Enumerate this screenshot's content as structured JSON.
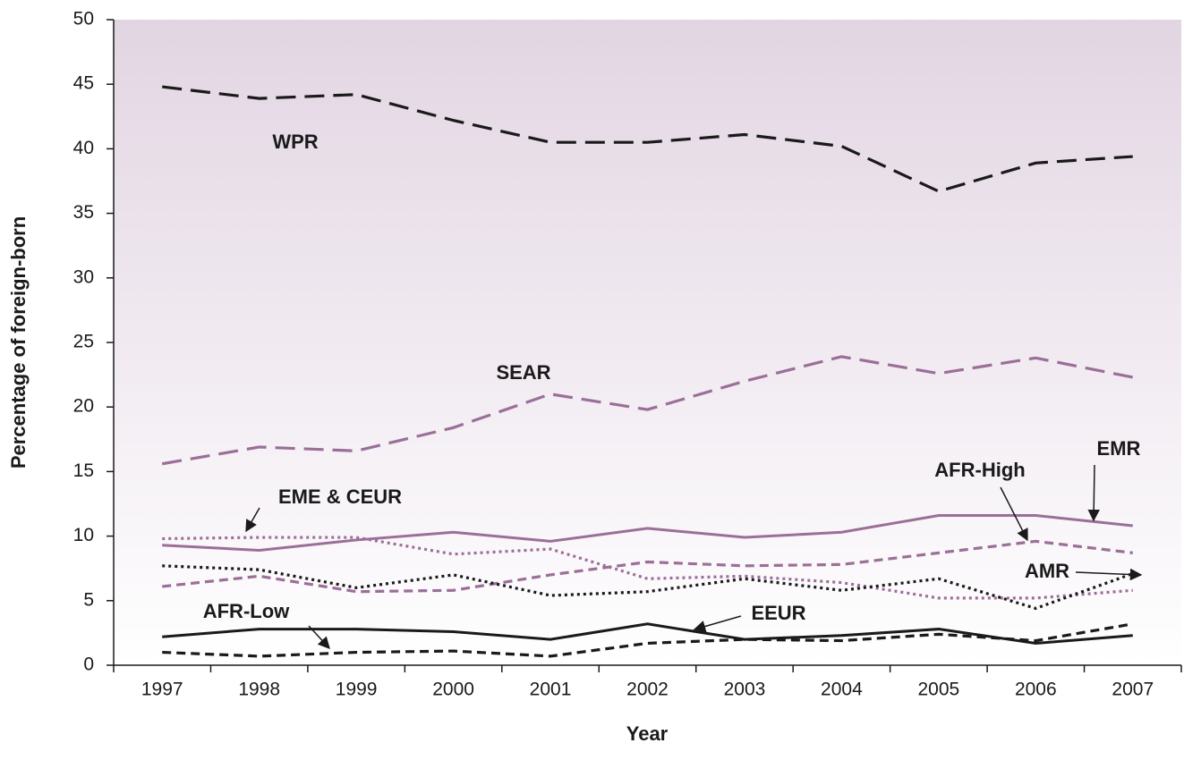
{
  "chart_data": {
    "type": "line",
    "xlabel": "Year",
    "ylabel": "Percentage of foreign-born",
    "categories": [
      "1997",
      "1998",
      "1999",
      "2000",
      "2001",
      "2002",
      "2003",
      "2004",
      "2005",
      "2006",
      "2007"
    ],
    "ylim": [
      0,
      50
    ],
    "yticks": [
      0,
      5,
      10,
      15,
      20,
      25,
      30,
      35,
      40,
      45,
      50
    ],
    "series": [
      {
        "name": "WPR",
        "color": "#1a1a1a",
        "dash": "longdash",
        "values": [
          44.8,
          43.9,
          44.2,
          42.2,
          40.5,
          40.5,
          41.1,
          40.2,
          36.7,
          38.9,
          39.4
        ]
      },
      {
        "name": "SEAR",
        "color": "#9b6f98",
        "dash": "longdash",
        "values": [
          15.6,
          16.9,
          16.6,
          18.4,
          21.0,
          19.8,
          22.0,
          23.9,
          22.6,
          23.8,
          22.3
        ]
      },
      {
        "name": "EMR",
        "color": "#9b6f98",
        "dash": "solid",
        "values": [
          9.3,
          8.9,
          9.7,
          10.3,
          9.6,
          10.6,
          9.9,
          10.3,
          11.6,
          11.6,
          10.8
        ]
      },
      {
        "name": "AFR-High",
        "color": "#9b6f98",
        "dash": "dash",
        "values": [
          6.1,
          6.9,
          5.7,
          5.8,
          7.0,
          8.0,
          7.7,
          7.8,
          8.7,
          9.6,
          8.7
        ]
      },
      {
        "name": "EME & CEUR",
        "color": "#9b6f98",
        "dash": "dot",
        "values": [
          9.8,
          9.9,
          9.9,
          8.6,
          9.0,
          6.7,
          6.9,
          6.4,
          5.2,
          5.2,
          5.8
        ]
      },
      {
        "name": "AMR",
        "color": "#1a1a1a",
        "dash": "dot",
        "values": [
          7.7,
          7.4,
          6.0,
          7.0,
          5.4,
          5.7,
          6.7,
          5.8,
          6.7,
          4.4,
          7.1
        ]
      },
      {
        "name": "EEUR",
        "color": "#1a1a1a",
        "dash": "solid",
        "values": [
          2.2,
          2.8,
          2.8,
          2.6,
          2.0,
          3.2,
          2.0,
          2.3,
          2.8,
          1.7,
          2.3
        ]
      },
      {
        "name": "AFR-Low",
        "color": "#1a1a1a",
        "dash": "dash",
        "values": [
          1.0,
          0.7,
          1.0,
          1.1,
          0.7,
          1.7,
          2.0,
          1.9,
          2.4,
          1.9,
          3.2
        ]
      }
    ]
  }
}
